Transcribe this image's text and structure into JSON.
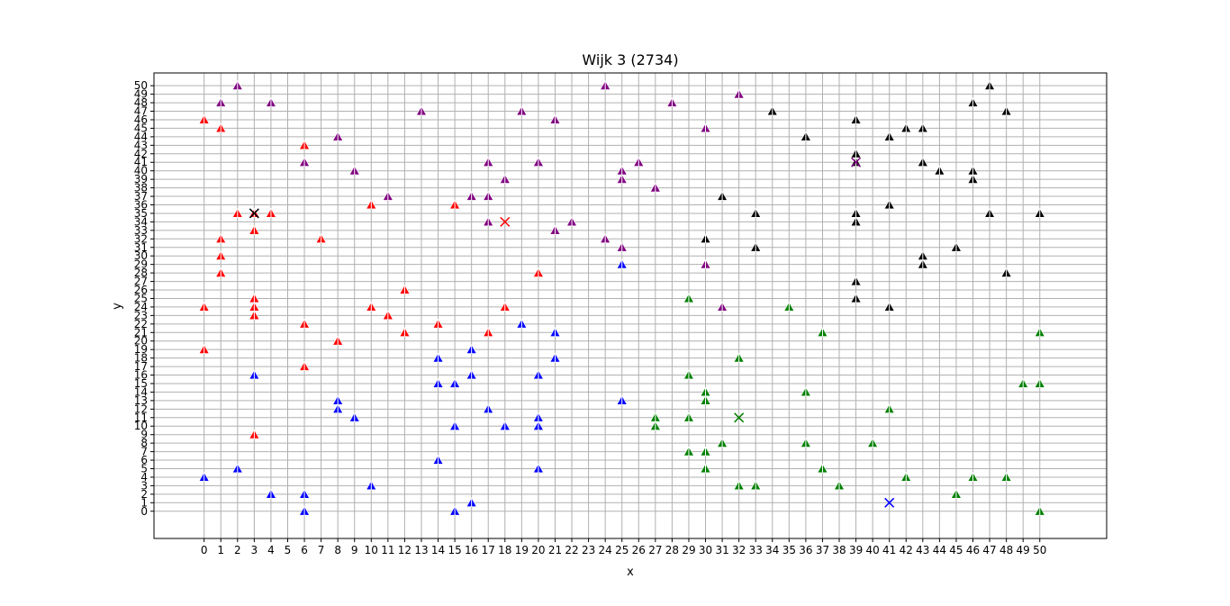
{
  "chart_data": {
    "type": "scatter",
    "title": "Wijk 3 (2734)",
    "xlabel": "x",
    "ylabel": "y",
    "xlim": [
      -3,
      54
    ],
    "ylim": [
      -3.2,
      51.5
    ],
    "xticks": [
      0,
      1,
      2,
      3,
      4,
      5,
      6,
      7,
      8,
      9,
      10,
      11,
      12,
      13,
      14,
      15,
      16,
      17,
      18,
      19,
      20,
      21,
      22,
      23,
      24,
      25,
      26,
      27,
      28,
      29,
      30,
      31,
      32,
      33,
      34,
      35,
      36,
      37,
      38,
      39,
      40,
      41,
      42,
      43,
      44,
      45,
      46,
      47,
      48,
      49,
      50
    ],
    "yticks": [
      0,
      1,
      2,
      3,
      4,
      5,
      6,
      7,
      8,
      9,
      10,
      11,
      12,
      13,
      14,
      15,
      16,
      17,
      18,
      19,
      20,
      21,
      22,
      23,
      24,
      25,
      26,
      27,
      28,
      29,
      30,
      31,
      32,
      33,
      34,
      35,
      36,
      37,
      38,
      39,
      40,
      41,
      42,
      43,
      44,
      45,
      46,
      47,
      48,
      49,
      50
    ],
    "grid": true,
    "legend": "none",
    "marker": "triangle",
    "series": [
      {
        "color": "#ff0000",
        "points": [
          [
            0,
            46
          ],
          [
            1,
            45
          ],
          [
            6,
            43
          ],
          [
            0,
            24
          ],
          [
            0,
            19
          ],
          [
            1,
            32
          ],
          [
            1,
            30
          ],
          [
            1,
            28
          ],
          [
            2,
            35
          ],
          [
            3,
            35
          ],
          [
            3,
            33
          ],
          [
            3,
            25
          ],
          [
            3,
            24
          ],
          [
            3,
            23
          ],
          [
            3,
            9
          ],
          [
            4,
            35
          ],
          [
            6,
            22
          ],
          [
            6,
            17
          ],
          [
            7,
            32
          ],
          [
            8,
            20
          ],
          [
            10,
            36
          ],
          [
            10,
            24
          ],
          [
            11,
            23
          ],
          [
            12,
            26
          ],
          [
            12,
            21
          ],
          [
            14,
            22
          ],
          [
            15,
            36
          ],
          [
            17,
            21
          ],
          [
            18,
            24
          ],
          [
            20,
            28
          ]
        ],
        "center": [
          18,
          34
        ]
      },
      {
        "color": "#800080",
        "points": [
          [
            1,
            48
          ],
          [
            2,
            50
          ],
          [
            4,
            48
          ],
          [
            6,
            41
          ],
          [
            8,
            44
          ],
          [
            9,
            40
          ],
          [
            11,
            37
          ],
          [
            13,
            47
          ],
          [
            16,
            37
          ],
          [
            17,
            41
          ],
          [
            17,
            37
          ],
          [
            17,
            34
          ],
          [
            18,
            39
          ],
          [
            19,
            47
          ],
          [
            20,
            41
          ],
          [
            21,
            46
          ],
          [
            21,
            33
          ],
          [
            22,
            34
          ],
          [
            24,
            50
          ],
          [
            24,
            32
          ],
          [
            25,
            40
          ],
          [
            25,
            39
          ],
          [
            25,
            31
          ],
          [
            26,
            41
          ],
          [
            27,
            38
          ],
          [
            28,
            48
          ],
          [
            30,
            45
          ],
          [
            30,
            29
          ],
          [
            31,
            24
          ],
          [
            32,
            49
          ]
        ],
        "center": [
          39,
          41
        ]
      },
      {
        "color": "#000000",
        "points": [
          [
            31,
            37
          ],
          [
            30,
            32
          ],
          [
            33,
            35
          ],
          [
            33,
            31
          ],
          [
            34,
            47
          ],
          [
            36,
            44
          ],
          [
            39,
            46
          ],
          [
            39,
            42
          ],
          [
            39,
            41
          ],
          [
            39,
            35
          ],
          [
            39,
            34
          ],
          [
            39,
            27
          ],
          [
            39,
            25
          ],
          [
            41,
            44
          ],
          [
            41,
            36
          ],
          [
            41,
            24
          ],
          [
            42,
            45
          ],
          [
            43,
            45
          ],
          [
            43,
            41
          ],
          [
            43,
            30
          ],
          [
            43,
            29
          ],
          [
            44,
            40
          ],
          [
            45,
            31
          ],
          [
            46,
            48
          ],
          [
            46,
            40
          ],
          [
            46,
            39
          ],
          [
            47,
            50
          ],
          [
            47,
            35
          ],
          [
            48,
            47
          ],
          [
            48,
            28
          ],
          [
            50,
            35
          ]
        ],
        "center": [
          3,
          35
        ]
      },
      {
        "color": "#0000ff",
        "points": [
          [
            0,
            4
          ],
          [
            2,
            5
          ],
          [
            3,
            16
          ],
          [
            4,
            2
          ],
          [
            6,
            2
          ],
          [
            6,
            0
          ],
          [
            8,
            13
          ],
          [
            8,
            12
          ],
          [
            9,
            11
          ],
          [
            10,
            3
          ],
          [
            14,
            18
          ],
          [
            14,
            15
          ],
          [
            14,
            6
          ],
          [
            15,
            15
          ],
          [
            15,
            10
          ],
          [
            15,
            0
          ],
          [
            16,
            19
          ],
          [
            16,
            16
          ],
          [
            16,
            1
          ],
          [
            17,
            12
          ],
          [
            18,
            10
          ],
          [
            19,
            22
          ],
          [
            20,
            16
          ],
          [
            20,
            11
          ],
          [
            20,
            10
          ],
          [
            20,
            5
          ],
          [
            21,
            21
          ],
          [
            21,
            18
          ],
          [
            25,
            29
          ],
          [
            25,
            13
          ]
        ],
        "center": [
          41,
          1
        ]
      },
      {
        "color": "#008000",
        "points": [
          [
            27,
            11
          ],
          [
            27,
            10
          ],
          [
            29,
            25
          ],
          [
            29,
            16
          ],
          [
            29,
            11
          ],
          [
            29,
            7
          ],
          [
            30,
            14
          ],
          [
            30,
            13
          ],
          [
            30,
            7
          ],
          [
            30,
            5
          ],
          [
            31,
            8
          ],
          [
            32,
            18
          ],
          [
            32,
            3
          ],
          [
            33,
            3
          ],
          [
            35,
            24
          ],
          [
            36,
            14
          ],
          [
            36,
            8
          ],
          [
            37,
            21
          ],
          [
            37,
            5
          ],
          [
            38,
            3
          ],
          [
            40,
            8
          ],
          [
            41,
            12
          ],
          [
            42,
            4
          ],
          [
            45,
            2
          ],
          [
            46,
            4
          ],
          [
            48,
            4
          ],
          [
            49,
            15
          ],
          [
            50,
            21
          ],
          [
            50,
            15
          ],
          [
            50,
            0
          ]
        ],
        "center": [
          32,
          11
        ]
      }
    ]
  }
}
